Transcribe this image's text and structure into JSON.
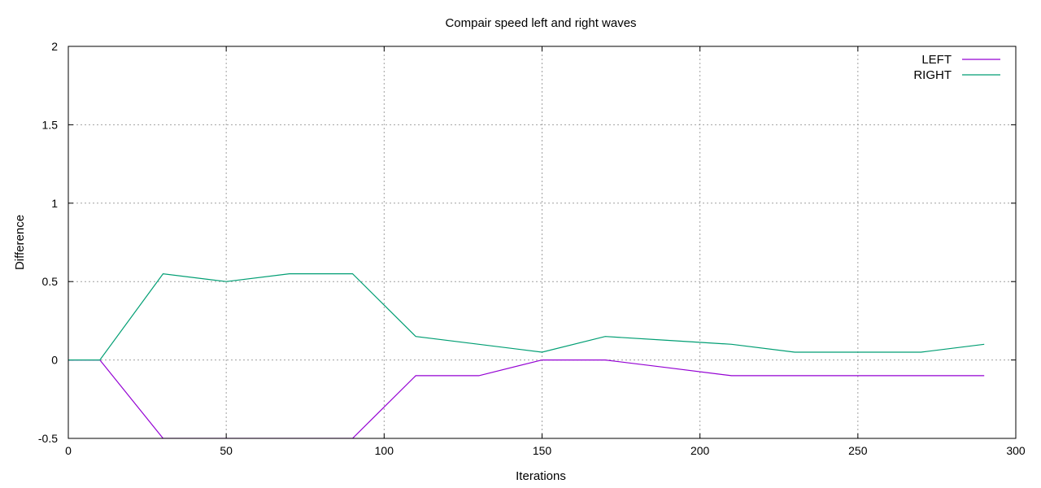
{
  "chart_data": {
    "type": "line",
    "title": "Compair speed left and right waves",
    "xlabel": "Iterations",
    "ylabel": "Difference",
    "xlim": [
      0,
      300
    ],
    "ylim": [
      -0.5,
      2
    ],
    "xticks": [
      0,
      50,
      100,
      150,
      200,
      250,
      300
    ],
    "yticks": [
      -0.5,
      0,
      0.5,
      1,
      1.5,
      2
    ],
    "ytick_labels": [
      "-0.5",
      "0",
      "0.5",
      "1",
      "1.5",
      "2"
    ],
    "xtick_labels": [
      "0",
      "50",
      "100",
      "150",
      "200",
      "250",
      "300"
    ],
    "grid": true,
    "legend_position": "top-right",
    "series": [
      {
        "name": "LEFT",
        "color": "#9400d3",
        "x": [
          0,
          10,
          30,
          50,
          70,
          90,
          110,
          130,
          150,
          170,
          190,
          210,
          230,
          250,
          270,
          290
        ],
        "y": [
          0,
          0,
          -0.5,
          -0.5,
          -0.5,
          -0.5,
          -0.1,
          -0.1,
          0,
          0,
          -0.05,
          -0.1,
          -0.1,
          -0.1,
          -0.1,
          -0.1
        ]
      },
      {
        "name": "RIGHT",
        "color": "#009e73",
        "x": [
          0,
          10,
          30,
          50,
          70,
          90,
          110,
          130,
          150,
          170,
          190,
          210,
          230,
          250,
          270,
          290
        ],
        "y": [
          0,
          0,
          0.55,
          0.5,
          0.55,
          0.55,
          0.15,
          0.1,
          0.05,
          0.15,
          0.125,
          0.1,
          0.05,
          0.05,
          0.05,
          0.1
        ]
      }
    ]
  }
}
